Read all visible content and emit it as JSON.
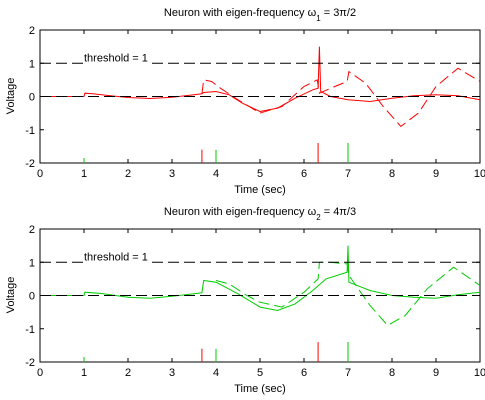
{
  "chart_data": [
    {
      "type": "line",
      "title_prefix": "Neuron with eigen-frequency ω",
      "title_sub": "1",
      "title_suffix": " = 3π/2",
      "xlabel": "Time (sec)",
      "ylabel": "Voltage",
      "xlim": [
        0,
        10
      ],
      "ylim": [
        -2,
        2
      ],
      "xticks": [
        "0",
        "1",
        "2",
        "3",
        "4",
        "5",
        "6",
        "7",
        "8",
        "9",
        "10"
      ],
      "yticks": [
        "-2",
        "-1",
        "0",
        "1",
        "2"
      ],
      "annotation": "threshold = 1",
      "threshold": 1,
      "colors": {
        "red": "#ff0000",
        "green": "#00cc00"
      },
      "series": [
        {
          "style": "solid-red",
          "points": [
            [
              0,
              0
            ],
            [
              1,
              0
            ],
            [
              1.02,
              0.1
            ],
            [
              1.2,
              0.08
            ],
            [
              1.6,
              0.02
            ],
            [
              2,
              -0.03
            ],
            [
              2.5,
              -0.06
            ],
            [
              3,
              -0.02
            ],
            [
              3.5,
              0.05
            ],
            [
              3.68,
              0.08
            ],
            [
              3.72,
              0.12
            ],
            [
              4,
              0.15
            ],
            [
              4.3,
              0.05
            ],
            [
              4.6,
              -0.2
            ],
            [
              5,
              -0.45
            ],
            [
              5.4,
              -0.35
            ],
            [
              5.8,
              -0.05
            ],
            [
              6.2,
              0.2
            ],
            [
              6.32,
              0.25
            ],
            [
              6.35,
              1.5
            ],
            [
              6.38,
              0.15
            ],
            [
              6.6,
              0.0
            ],
            [
              7,
              -0.1
            ],
            [
              7.5,
              -0.15
            ],
            [
              8,
              -0.05
            ],
            [
              8.5,
              0.02
            ],
            [
              9,
              0.05
            ],
            [
              9.5,
              0.02
            ],
            [
              10,
              -0.1
            ]
          ]
        },
        {
          "style": "dashed-red",
          "points": [
            [
              3.68,
              0.08
            ],
            [
              3.72,
              0.5
            ],
            [
              3.9,
              0.45
            ],
            [
              4.1,
              0.25
            ],
            [
              4.5,
              -0.1
            ],
            [
              5,
              -0.5
            ],
            [
              5.5,
              -0.3
            ],
            [
              6,
              0.3
            ],
            [
              6.3,
              0.5
            ],
            [
              6.35,
              0.1
            ],
            [
              6.7,
              0.3
            ],
            [
              6.98,
              0.45
            ],
            [
              7.02,
              0.75
            ],
            [
              7.4,
              0.4
            ],
            [
              7.8,
              -0.3
            ],
            [
              8.2,
              -0.9
            ],
            [
              8.6,
              -0.5
            ],
            [
              9,
              0.3
            ],
            [
              9.5,
              0.85
            ],
            [
              10,
              0.45
            ]
          ]
        },
        {
          "style": "dashed-black",
          "points": [
            [
              0,
              1
            ],
            [
              10,
              1
            ]
          ]
        },
        {
          "style": "dashed-black",
          "points": [
            [
              0,
              0
            ],
            [
              10,
              0
            ]
          ]
        }
      ],
      "spikes": [
        {
          "x": 1.0,
          "color": "green",
          "top": -1.85
        },
        {
          "x": 3.68,
          "color": "red",
          "top": -1.6
        },
        {
          "x": 4.0,
          "color": "green",
          "top": -1.6
        },
        {
          "x": 6.32,
          "color": "red",
          "top": -1.4
        },
        {
          "x": 7.0,
          "color": "green",
          "top": -1.4
        }
      ]
    },
    {
      "type": "line",
      "title_prefix": "Neuron with eigen-frequency ω",
      "title_sub": "2",
      "title_suffix": " = 4π/3",
      "xlabel": "Time (sec)",
      "ylabel": "Voltage",
      "xlim": [
        0,
        10
      ],
      "ylim": [
        -2,
        2
      ],
      "xticks": [
        "0",
        "1",
        "2",
        "3",
        "4",
        "5",
        "6",
        "7",
        "8",
        "9",
        "10"
      ],
      "yticks": [
        "-2",
        "-1",
        "0",
        "1",
        "2"
      ],
      "annotation": "threshold = 1",
      "threshold": 1,
      "colors": {
        "red": "#ff0000",
        "green": "#00cc00"
      },
      "series": [
        {
          "style": "solid-green",
          "points": [
            [
              0,
              0
            ],
            [
              1,
              0
            ],
            [
              1.02,
              0.1
            ],
            [
              1.4,
              0.06
            ],
            [
              2,
              -0.05
            ],
            [
              2.5,
              -0.08
            ],
            [
              3,
              -0.02
            ],
            [
              3.5,
              0.05
            ],
            [
              3.68,
              0.08
            ],
            [
              3.72,
              0.45
            ],
            [
              4,
              0.4
            ],
            [
              4.5,
              0.05
            ],
            [
              5,
              -0.35
            ],
            [
              5.4,
              -0.45
            ],
            [
              5.8,
              -0.25
            ],
            [
              6.2,
              0.15
            ],
            [
              6.5,
              0.5
            ],
            [
              6.98,
              0.7
            ],
            [
              7.0,
              1.5
            ],
            [
              7.02,
              0.4
            ],
            [
              7.5,
              0.15
            ],
            [
              8,
              0.0
            ],
            [
              8.5,
              -0.05
            ],
            [
              9,
              -0.08
            ],
            [
              9.5,
              0.02
            ],
            [
              10,
              0.1
            ]
          ]
        },
        {
          "style": "dashed-green",
          "points": [
            [
              4,
              0.45
            ],
            [
              4.3,
              0.35
            ],
            [
              4.7,
              0.0
            ],
            [
              5,
              -0.2
            ],
            [
              5.5,
              -0.35
            ],
            [
              6,
              0.1
            ],
            [
              6.32,
              0.5
            ],
            [
              6.35,
              1.0
            ],
            [
              6.6,
              1.0
            ],
            [
              6.98,
              0.95
            ],
            [
              7.02,
              0.6
            ],
            [
              7.5,
              -0.3
            ],
            [
              7.9,
              -0.9
            ],
            [
              8.3,
              -0.6
            ],
            [
              8.8,
              0.2
            ],
            [
              9.4,
              0.85
            ],
            [
              10,
              0.3
            ]
          ]
        },
        {
          "style": "dashed-black",
          "points": [
            [
              0,
              1
            ],
            [
              10,
              1
            ]
          ]
        },
        {
          "style": "dashed-black",
          "points": [
            [
              0,
              0
            ],
            [
              10,
              0
            ]
          ]
        }
      ],
      "spikes": [
        {
          "x": 1.0,
          "color": "green",
          "top": -1.85
        },
        {
          "x": 3.68,
          "color": "red",
          "top": -1.6
        },
        {
          "x": 4.0,
          "color": "green",
          "top": -1.6
        },
        {
          "x": 6.32,
          "color": "red",
          "top": -1.4
        },
        {
          "x": 7.0,
          "color": "green",
          "top": -1.4
        }
      ]
    }
  ]
}
